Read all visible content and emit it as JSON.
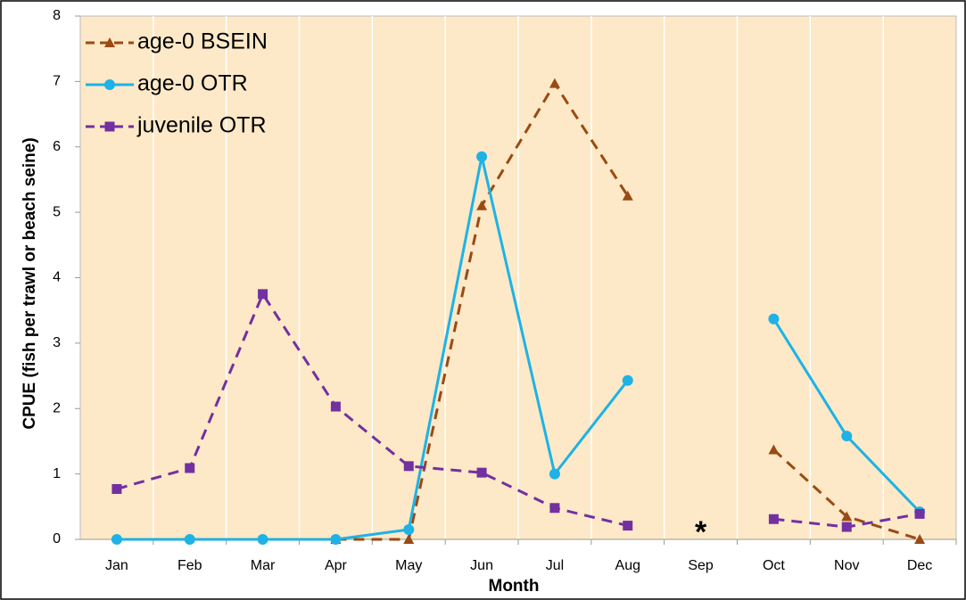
{
  "chart_data": {
    "type": "line",
    "x_label": "Month",
    "y_label": "CPUE (fish per trawl or beach seine)",
    "annotation": "*",
    "categories": [
      "Jan",
      "Feb",
      "Mar",
      "Apr",
      "May",
      "Jun",
      "Jul",
      "Aug",
      "Sep",
      "Oct",
      "Nov",
      "Dec"
    ],
    "series": [
      {
        "name": "age-0 BSEIN",
        "color": "#9a4a14",
        "dash": true,
        "marker": "triangle",
        "values": [
          null,
          null,
          null,
          0,
          0,
          5.1,
          6.97,
          5.25,
          null,
          1.37,
          0.35,
          0
        ]
      },
      {
        "name": "age-0 OTR",
        "color": "#1eb2e6",
        "dash": false,
        "marker": "circle",
        "values": [
          0,
          0,
          0,
          0,
          0.15,
          5.85,
          1.0,
          2.43,
          null,
          3.37,
          1.58,
          0.42
        ]
      },
      {
        "name": "juvenile OTR",
        "color": "#7330a0",
        "dash": true,
        "marker": "square",
        "values": [
          0.77,
          1.09,
          3.75,
          2.03,
          1.12,
          1.02,
          0.48,
          0.21,
          null,
          0.31,
          0.19,
          0.39
        ]
      }
    ],
    "ylim": [
      0,
      8
    ],
    "yticks": [
      0,
      1,
      2,
      3,
      4,
      5,
      6,
      7,
      8
    ],
    "legend": "upper-left",
    "background": "#fde9c7"
  }
}
